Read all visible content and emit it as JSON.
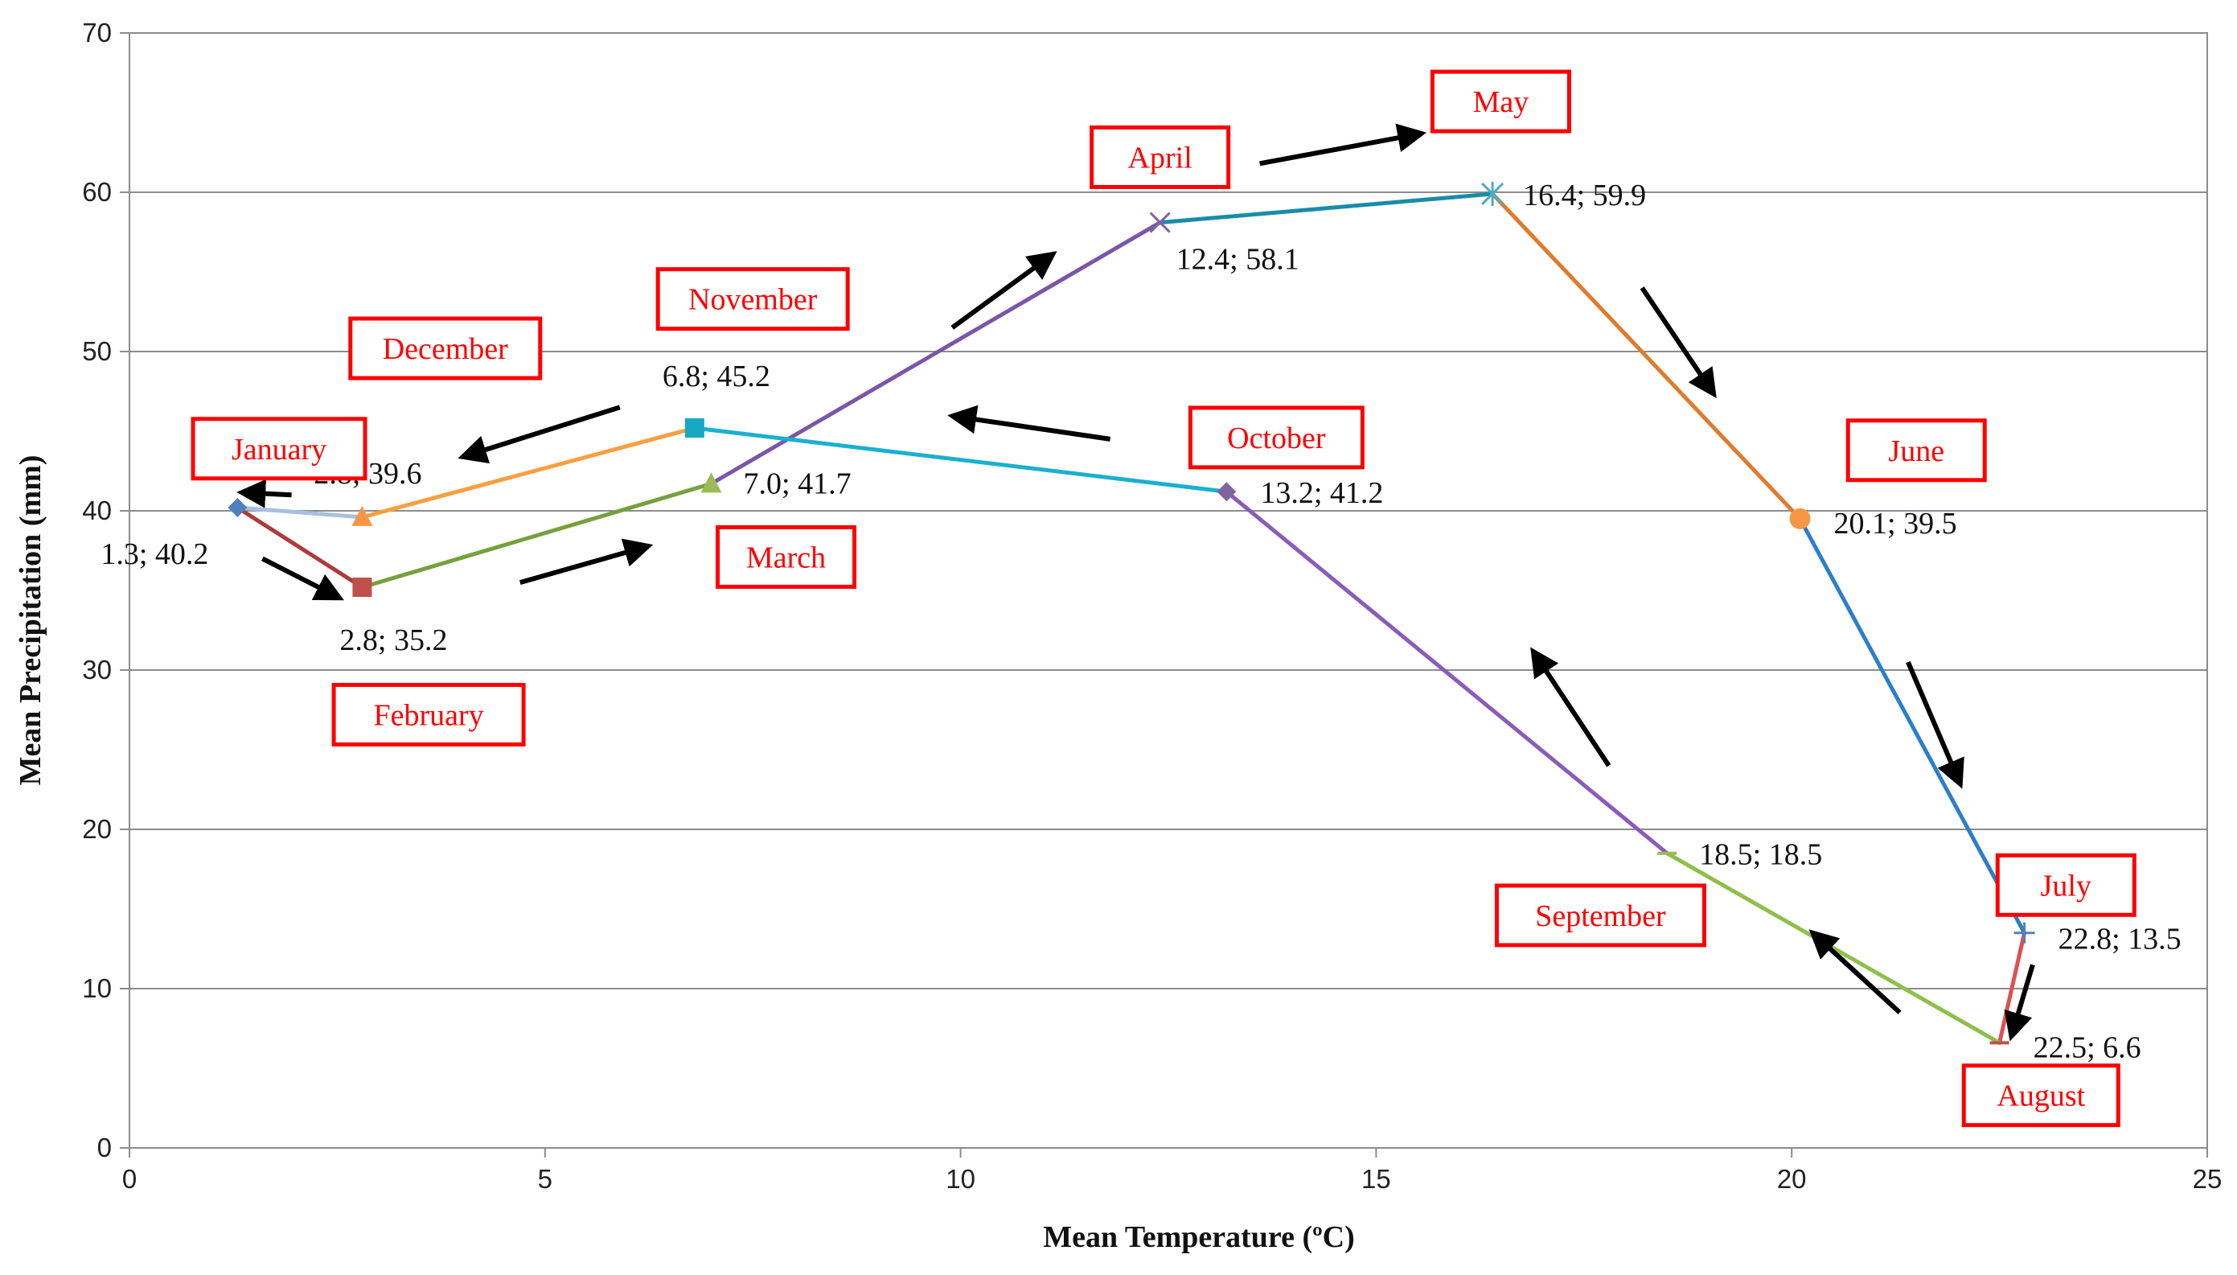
{
  "chart_data": {
    "type": "line",
    "title": "",
    "xlabel": "Mean Temperature (ºC)",
    "ylabel": "Mean Precipitation (mm)",
    "xlim": [
      0,
      25
    ],
    "ylim": [
      0,
      70
    ],
    "xticks": [
      0,
      5,
      10,
      15,
      20,
      25
    ],
    "yticks": [
      0,
      10,
      20,
      30,
      40,
      50,
      60,
      70
    ],
    "grid": "horizontal",
    "points": [
      {
        "month": "January",
        "x": 1.3,
        "y": 40.2,
        "label": "1.3; 40.2",
        "marker": "diamond",
        "color": "#4f81bd"
      },
      {
        "month": "February",
        "x": 2.8,
        "y": 35.2,
        "label": "2.8; 35.2",
        "marker": "square",
        "color": "#c0504d"
      },
      {
        "month": "March",
        "x": 7.0,
        "y": 41.7,
        "label": "7.0; 41.7",
        "marker": "triangle",
        "color": "#9bbb59"
      },
      {
        "month": "April",
        "x": 12.4,
        "y": 58.1,
        "label": "12.4; 58.1",
        "marker": "x",
        "color": "#8064a2"
      },
      {
        "month": "May",
        "x": 16.4,
        "y": 59.9,
        "label": "16.4; 59.9",
        "marker": "star",
        "color": "#4bacc6"
      },
      {
        "month": "June",
        "x": 20.1,
        "y": 39.5,
        "label": "20.1; 39.5",
        "marker": "circle",
        "color": "#f79646"
      },
      {
        "month": "July",
        "x": 22.8,
        "y": 13.5,
        "label": "22.8; 13.5",
        "marker": "plus",
        "color": "#4f81bd"
      },
      {
        "month": "August",
        "x": 22.5,
        "y": 6.6,
        "label": "22.5; 6.6",
        "marker": "dash",
        "color": "#c0504d"
      },
      {
        "month": "September",
        "x": 18.5,
        "y": 18.5,
        "label": "18.5; 18.5",
        "marker": "dash",
        "color": "#9bbb59"
      },
      {
        "month": "October",
        "x": 13.2,
        "y": 41.2,
        "label": "13.2; 41.2",
        "marker": "diamond",
        "color": "#8064a2"
      },
      {
        "month": "November",
        "x": 6.8,
        "y": 45.2,
        "label": "6.8; 45.2",
        "marker": "square",
        "color": "#17a9c4"
      },
      {
        "month": "December",
        "x": 2.8,
        "y": 39.6,
        "label": "2.8; 39.6",
        "marker": "triangle",
        "color": "#f79646"
      }
    ],
    "segments": [
      {
        "from": 0,
        "to": 1,
        "color": "#b03a3a"
      },
      {
        "from": 1,
        "to": 2,
        "color": "#76a03c"
      },
      {
        "from": 2,
        "to": 3,
        "color": "#7b56a8"
      },
      {
        "from": 3,
        "to": 4,
        "color": "#1a8ca8"
      },
      {
        "from": 4,
        "to": 5,
        "color": "#e07b2a"
      },
      {
        "from": 5,
        "to": 6,
        "color": "#2a7fc8"
      },
      {
        "from": 6,
        "to": 7,
        "color": "#e05050"
      },
      {
        "from": 7,
        "to": 8,
        "color": "#8cc04a"
      },
      {
        "from": 8,
        "to": 9,
        "color": "#8a5cb8"
      },
      {
        "from": 9,
        "to": 10,
        "color": "#1ab0d0"
      },
      {
        "from": 10,
        "to": 11,
        "color": "#f7a040"
      },
      {
        "from": 11,
        "to": 0,
        "color": "#a8c0e0"
      }
    ],
    "month_boxes": [
      {
        "text": "January",
        "cx": 1.8,
        "cy": 43.9
      },
      {
        "text": "February",
        "cx": 3.6,
        "cy": 27.2
      },
      {
        "text": "March",
        "cx": 7.9,
        "cy": 37.1
      },
      {
        "text": "April",
        "cx": 12.4,
        "cy": 62.2
      },
      {
        "text": "May",
        "cx": 16.5,
        "cy": 65.7
      },
      {
        "text": "June",
        "cx": 21.5,
        "cy": 43.8
      },
      {
        "text": "July",
        "cx": 23.3,
        "cy": 16.5
      },
      {
        "text": "August",
        "cx": 23.0,
        "cy": 3.3
      },
      {
        "text": "September",
        "cx": 17.7,
        "cy": 14.6
      },
      {
        "text": "October",
        "cx": 13.8,
        "cy": 44.6
      },
      {
        "text": "November",
        "cx": 7.5,
        "cy": 53.3
      },
      {
        "text": "December",
        "cx": 3.8,
        "cy": 50.2
      }
    ],
    "arrows": [
      {
        "x1": 1.6,
        "y1": 37.0,
        "x2": 2.35,
        "y2": 35.0
      },
      {
        "x1": 4.7,
        "y1": 35.5,
        "x2": 6.05,
        "y2": 37.5
      },
      {
        "x1": 9.9,
        "y1": 51.5,
        "x2": 10.95,
        "y2": 55.5
      },
      {
        "x1": 13.6,
        "y1": 61.8,
        "x2": 15.35,
        "y2": 63.5
      },
      {
        "x1": 18.2,
        "y1": 54.0,
        "x2": 18.95,
        "y2": 48.2
      },
      {
        "x1": 21.4,
        "y1": 30.5,
        "x2": 21.95,
        "y2": 23.8
      },
      {
        "x1": 22.9,
        "y1": 11.5,
        "x2": 22.7,
        "y2": 8.0
      },
      {
        "x1": 21.3,
        "y1": 8.5,
        "x2": 20.4,
        "y2": 12.8
      },
      {
        "x1": 17.8,
        "y1": 24.0,
        "x2": 17.0,
        "y2": 30.3
      },
      {
        "x1": 11.8,
        "y1": 44.5,
        "x2": 10.1,
        "y2": 45.8
      },
      {
        "x1": 5.9,
        "y1": 46.5,
        "x2": 4.2,
        "y2": 43.7
      },
      {
        "x1": 1.95,
        "y1": 41.0,
        "x2": 1.55,
        "y2": 41.1
      }
    ]
  }
}
